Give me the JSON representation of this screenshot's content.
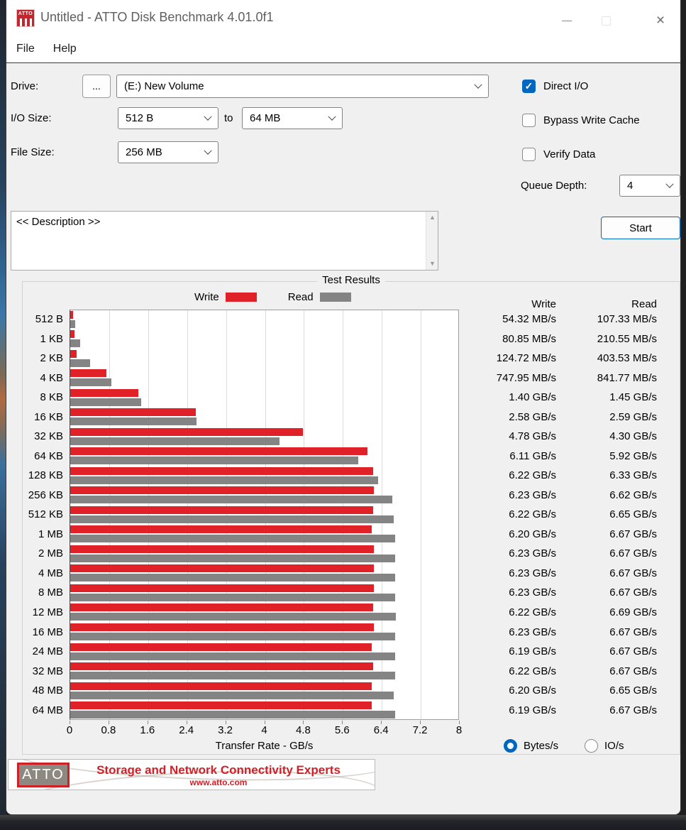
{
  "window": {
    "title": "Untitled - ATTO Disk Benchmark 4.01.0f1",
    "menu": {
      "file": "File",
      "help": "Help"
    }
  },
  "controls": {
    "drive_label": "Drive:",
    "browse_label": "...",
    "drive_value": "(E:) New Volume",
    "io_size_label": "I/O Size:",
    "io_size_from": "512 B",
    "io_size_to_word": "to",
    "io_size_to": "64 MB",
    "file_size_label": "File Size:",
    "file_size_value": "256 MB",
    "direct_io_label": "Direct I/O",
    "direct_io_checked": true,
    "bypass_write_cache_label": "Bypass Write Cache",
    "bypass_write_cache_checked": false,
    "verify_data_label": "Verify Data",
    "verify_data_checked": false,
    "queue_depth_label": "Queue Depth:",
    "queue_depth_value": "4",
    "start_label": "Start",
    "description_text": "<< Description >>",
    "check_glyph": "✓"
  },
  "results": {
    "group_title": "Test Results",
    "legend": {
      "write": "Write",
      "read": "Read"
    },
    "column_headers": {
      "write": "Write",
      "read": "Read"
    },
    "units": {
      "bytes_label": "Bytes/s",
      "ios_label": "IO/s",
      "selected": "Bytes/s"
    }
  },
  "chart_data": {
    "type": "bar",
    "orientation": "horizontal",
    "title": "Test Results",
    "xlabel": "Transfer Rate - GB/s",
    "xlim": [
      0,
      8
    ],
    "xticks": [
      "0",
      "0.8",
      "1.6",
      "2.4",
      "3.2",
      "4",
      "4.8",
      "5.6",
      "6.4",
      "7.2",
      "8"
    ],
    "grid": true,
    "legend_position": "top",
    "categories": [
      "512 B",
      "1 KB",
      "2 KB",
      "4 KB",
      "8 KB",
      "16 KB",
      "32 KB",
      "64 KB",
      "128 KB",
      "256 KB",
      "512 KB",
      "1 MB",
      "2 MB",
      "4 MB",
      "8 MB",
      "12 MB",
      "16 MB",
      "24 MB",
      "32 MB",
      "48 MB",
      "64 MB"
    ],
    "series": [
      {
        "name": "Write",
        "unit": "GB/s",
        "color": "#e02128",
        "values": [
          0.0543,
          0.0809,
          0.1247,
          0.748,
          1.4,
          2.58,
          4.78,
          6.11,
          6.22,
          6.23,
          6.22,
          6.2,
          6.23,
          6.23,
          6.23,
          6.22,
          6.23,
          6.19,
          6.22,
          6.2,
          6.19
        ],
        "labels": [
          "54.32 MB/s",
          "80.85 MB/s",
          "124.72 MB/s",
          "747.95 MB/s",
          "1.40 GB/s",
          "2.58 GB/s",
          "4.78 GB/s",
          "6.11 GB/s",
          "6.22 GB/s",
          "6.23 GB/s",
          "6.22 GB/s",
          "6.20 GB/s",
          "6.23 GB/s",
          "6.23 GB/s",
          "6.23 GB/s",
          "6.22 GB/s",
          "6.23 GB/s",
          "6.19 GB/s",
          "6.22 GB/s",
          "6.20 GB/s",
          "6.19 GB/s"
        ]
      },
      {
        "name": "Read",
        "unit": "GB/s",
        "color": "#848484",
        "values": [
          0.1073,
          0.2106,
          0.4035,
          0.8418,
          1.45,
          2.59,
          4.3,
          5.92,
          6.33,
          6.62,
          6.65,
          6.67,
          6.67,
          6.67,
          6.67,
          6.69,
          6.67,
          6.67,
          6.67,
          6.65,
          6.67
        ],
        "labels": [
          "107.33 MB/s",
          "210.55 MB/s",
          "403.53 MB/s",
          "841.77 MB/s",
          "1.45 GB/s",
          "2.59 GB/s",
          "4.30 GB/s",
          "5.92 GB/s",
          "6.33 GB/s",
          "6.62 GB/s",
          "6.65 GB/s",
          "6.67 GB/s",
          "6.67 GB/s",
          "6.67 GB/s",
          "6.67 GB/s",
          "6.69 GB/s",
          "6.67 GB/s",
          "6.67 GB/s",
          "6.67 GB/s",
          "6.65 GB/s",
          "6.67 GB/s"
        ]
      }
    ]
  },
  "banner": {
    "logo": "ATTO",
    "title": "Storage and Network Connectivity Experts",
    "url": "www.atto.com"
  },
  "colors": {
    "accent_blue": "#0067c0",
    "write_red": "#e02128",
    "read_gray": "#848484"
  }
}
